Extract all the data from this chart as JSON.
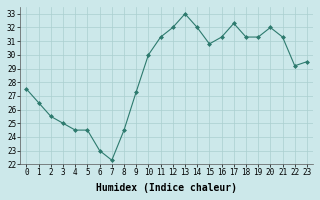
{
  "x": [
    0,
    1,
    2,
    3,
    4,
    5,
    6,
    7,
    8,
    9,
    10,
    11,
    12,
    13,
    14,
    15,
    16,
    17,
    18,
    19,
    20,
    21,
    22,
    23
  ],
  "y": [
    27.5,
    26.5,
    25.5,
    25.0,
    24.5,
    24.5,
    23.0,
    22.3,
    24.5,
    27.3,
    30.0,
    31.3,
    32.0,
    33.0,
    32.0,
    30.8,
    31.3,
    32.3,
    31.3,
    31.3,
    32.0,
    31.3,
    29.2,
    29.5
  ],
  "xlim": [
    -0.5,
    23.5
  ],
  "ylim": [
    22,
    33.5
  ],
  "yticks": [
    22,
    23,
    24,
    25,
    26,
    27,
    28,
    29,
    30,
    31,
    32,
    33
  ],
  "xticks": [
    0,
    1,
    2,
    3,
    4,
    5,
    6,
    7,
    8,
    9,
    10,
    11,
    12,
    13,
    14,
    15,
    16,
    17,
    18,
    19,
    20,
    21,
    22,
    23
  ],
  "xlabel": "Humidex (Indice chaleur)",
  "line_color": "#2d7a6e",
  "marker": "D",
  "marker_size": 2.0,
  "bg_color": "#cce8ea",
  "grid_color": "#aacfcf",
  "tick_label_fontsize": 5.5,
  "xlabel_fontsize": 7.0
}
